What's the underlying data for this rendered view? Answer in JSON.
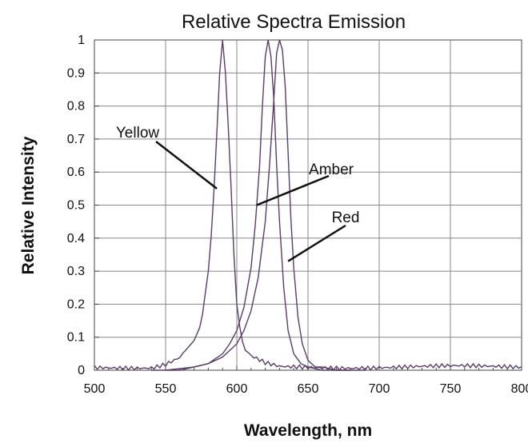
{
  "chart_data": {
    "type": "line",
    "title": "Relative Spectra Emission",
    "xlabel": "Wavelength, nm",
    "ylabel": "Relative Intensity",
    "xlim": [
      500,
      800
    ],
    "ylim": [
      0,
      1
    ],
    "xticks": [
      500,
      550,
      600,
      650,
      700,
      750,
      800
    ],
    "yticks": [
      0,
      0.1,
      0.2,
      0.3,
      0.4,
      0.5,
      0.6,
      0.7,
      0.8,
      0.9,
      1
    ],
    "ytick_labels": [
      "0",
      "0.1",
      "0.2",
      "0.3",
      "0.4",
      "0.5",
      "0.6",
      "0.7",
      "0.8",
      "0.9",
      "1"
    ],
    "grid": true,
    "line_color": "#5a3d66",
    "series": [
      {
        "name": "Yellow",
        "peak": 590,
        "x": [
          500,
          520,
          540,
          550,
          560,
          570,
          575,
          580,
          583,
          586,
          588,
          589,
          590,
          591,
          592,
          594,
          596,
          598,
          600,
          603,
          606,
          610,
          615,
          620,
          630,
          650,
          700,
          750,
          800
        ],
        "values": [
          0.01,
          0.01,
          0.01,
          0.02,
          0.04,
          0.09,
          0.14,
          0.3,
          0.46,
          0.72,
          0.9,
          0.97,
          1.0,
          0.97,
          0.9,
          0.74,
          0.55,
          0.35,
          0.2,
          0.1,
          0.06,
          0.04,
          0.03,
          0.02,
          0.01,
          0.01,
          0.01,
          0.01,
          0.01
        ]
      },
      {
        "name": "Amber",
        "peak": 622,
        "x": [
          540,
          560,
          570,
          580,
          590,
          595,
          600,
          605,
          610,
          613,
          616,
          618,
          620,
          622,
          624,
          626,
          628,
          630,
          633,
          636,
          640,
          645,
          650,
          660,
          680
        ],
        "values": [
          0.0,
          0.0,
          0.01,
          0.02,
          0.05,
          0.08,
          0.12,
          0.19,
          0.31,
          0.44,
          0.62,
          0.8,
          0.95,
          1.0,
          0.95,
          0.82,
          0.62,
          0.45,
          0.25,
          0.12,
          0.05,
          0.02,
          0.01,
          0.0,
          0.0
        ]
      },
      {
        "name": "Red",
        "peak": 630,
        "x": [
          550,
          570,
          580,
          590,
          600,
          605,
          610,
          615,
          620,
          623,
          626,
          628,
          630,
          632,
          634,
          636,
          638,
          640,
          643,
          646,
          650,
          655,
          660,
          670,
          690
        ],
        "values": [
          0.0,
          0.01,
          0.02,
          0.04,
          0.08,
          0.12,
          0.18,
          0.28,
          0.45,
          0.62,
          0.82,
          0.96,
          1.0,
          0.97,
          0.86,
          0.66,
          0.46,
          0.31,
          0.16,
          0.08,
          0.03,
          0.01,
          0.01,
          0.0,
          0.0
        ]
      }
    ],
    "annotations": [
      "Yellow",
      "Amber",
      "Red"
    ]
  }
}
